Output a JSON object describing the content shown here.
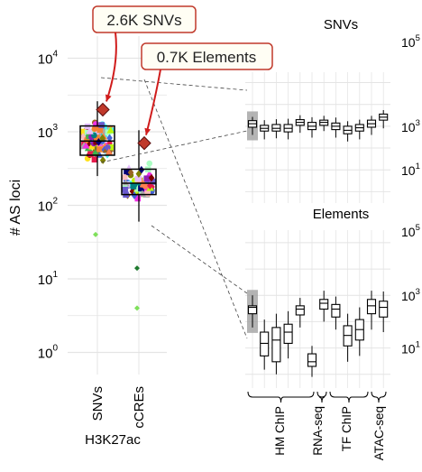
{
  "chart_data": {
    "type": "box",
    "left_panel": {
      "ylabel": "# AS loci",
      "y_scale": "log10",
      "ylim": [
        0.5,
        20000
      ],
      "y_ticks": [
        1,
        10,
        100,
        1000,
        10000
      ],
      "y_tick_labels": [
        {
          "base": "10",
          "exp": "0"
        },
        {
          "base": "10",
          "exp": "1"
        },
        {
          "base": "10",
          "exp": "2"
        },
        {
          "base": "10",
          "exp": "3"
        },
        {
          "base": "10",
          "exp": "4"
        }
      ],
      "categories": [
        "SNVs",
        "cCREs"
      ],
      "group_label": "H3K27ac",
      "grid": true,
      "boxes": [
        {
          "category": "SNVs",
          "q1": 480,
          "median": 750,
          "q3": 1200,
          "whisker_low": 250,
          "whisker_high": 2600
        },
        {
          "category": "cCREs",
          "q1": 140,
          "median": 200,
          "q3": 310,
          "whisker_low": 60,
          "whisker_high": 1050
        }
      ],
      "highlight": [
        {
          "category": "SNVs",
          "value": 2000,
          "color": "#c0392b"
        },
        {
          "category": "cCREs",
          "value": 700,
          "color": "#c0392b"
        }
      ],
      "outliers": [
        {
          "category": "SNVs",
          "value": 40,
          "color": "#7ee05a"
        },
        {
          "category": "cCREs",
          "value": 14,
          "color": "#1e7a2e"
        },
        {
          "category": "cCREs",
          "value": 4,
          "color": "#7ee05a"
        }
      ]
    },
    "callouts": [
      {
        "text": "2.6K SNVs"
      },
      {
        "text": "0.7K Elements"
      }
    ],
    "right_panels": [
      {
        "title": "SNVs",
        "y_scale": "log10",
        "y_tick_labels": [
          {
            "base": "10",
            "exp": "5"
          },
          {
            "base": "10",
            "exp": "3"
          },
          {
            "base": "10",
            "exp": "1"
          }
        ],
        "boxes": [
          {
            "q1": 900,
            "median": 1300,
            "q3": 1800,
            "low": 400,
            "high": 2700,
            "highlight": true
          },
          {
            "q1": 600,
            "median": 800,
            "q3": 1100,
            "low": 250,
            "high": 1900
          },
          {
            "q1": 600,
            "median": 800,
            "q3": 1200,
            "low": 280,
            "high": 2100
          },
          {
            "q1": 550,
            "median": 800,
            "q3": 1200,
            "low": 250,
            "high": 2200
          },
          {
            "q1": 1100,
            "median": 1500,
            "q3": 2000,
            "low": 500,
            "high": 3200
          },
          {
            "q1": 700,
            "median": 1000,
            "q3": 1500,
            "low": 300,
            "high": 2600
          },
          {
            "q1": 1100,
            "median": 1500,
            "q3": 1900,
            "low": 600,
            "high": 3000
          },
          {
            "q1": 700,
            "median": 1000,
            "q3": 1400,
            "low": 300,
            "high": 2500
          },
          {
            "q1": 450,
            "median": 650,
            "q3": 1000,
            "low": 200,
            "high": 1700
          },
          {
            "q1": 600,
            "median": 850,
            "q3": 1200,
            "low": 250,
            "high": 2000
          },
          {
            "q1": 900,
            "median": 1300,
            "q3": 1900,
            "low": 400,
            "high": 3000
          },
          {
            "q1": 1900,
            "median": 2600,
            "q3": 3600,
            "low": 800,
            "high": 5500
          }
        ]
      },
      {
        "title": "Elements",
        "y_scale": "log10",
        "y_tick_labels": [
          {
            "base": "10",
            "exp": "5"
          },
          {
            "base": "10",
            "exp": "3"
          },
          {
            "base": "10",
            "exp": "1"
          }
        ],
        "boxes": [
          {
            "q1": 200,
            "median": 350,
            "q3": 400,
            "low": 60,
            "high": 1000,
            "highlight": true
          },
          {
            "q1": 5,
            "median": 15,
            "q3": 40,
            "low": 1.5,
            "high": 120
          },
          {
            "q1": 3,
            "median": 20,
            "q3": 60,
            "low": 1,
            "high": 200
          },
          {
            "q1": 15,
            "median": 40,
            "q3": 80,
            "low": 4,
            "high": 250
          },
          {
            "q1": 180,
            "median": 300,
            "q3": 400,
            "low": 60,
            "high": 800
          },
          {
            "q1": 2,
            "median": 3,
            "q3": 6,
            "low": 0.8,
            "high": 12
          },
          {
            "q1": 300,
            "median": 500,
            "q3": 700,
            "low": 100,
            "high": 1500
          },
          {
            "q1": 150,
            "median": 300,
            "q3": 450,
            "low": 50,
            "high": 900
          },
          {
            "q1": 12,
            "median": 30,
            "q3": 70,
            "low": 3,
            "high": 200
          },
          {
            "q1": 20,
            "median": 50,
            "q3": 120,
            "low": 5,
            "high": 350
          },
          {
            "q1": 200,
            "median": 400,
            "q3": 700,
            "low": 50,
            "high": 1500
          },
          {
            "q1": 150,
            "median": 350,
            "q3": 600,
            "low": 40,
            "high": 1400
          }
        ]
      }
    ],
    "group_labels": [
      "HM ChIP",
      "RNA-seq",
      "TF ChIP",
      "ATAC-seq"
    ],
    "colors": {
      "box": "#000000",
      "highlight_band": "#9b9b9b",
      "grid": "#e4e4e4",
      "callout_border": "#c0392b",
      "callout_arrow": "#d01c1c",
      "point_palette": [
        "#e6194b",
        "#3cb44b",
        "#ffe119",
        "#4363d8",
        "#f58231",
        "#911eb4",
        "#46f0f0",
        "#f032e6",
        "#bcf60c",
        "#fabebe",
        "#008080",
        "#e6beff",
        "#9a6324",
        "#800000",
        "#aaffc3",
        "#808000",
        "#000075",
        "#a9a9a9",
        "#ff7f50",
        "#6a5acd"
      ]
    }
  }
}
